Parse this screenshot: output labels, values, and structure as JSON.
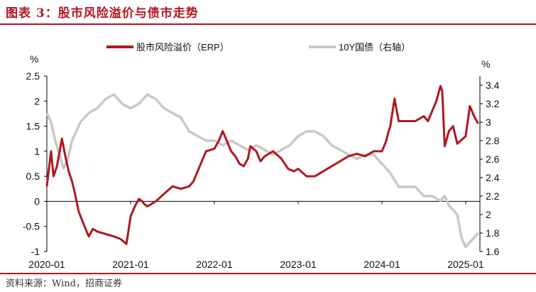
{
  "title": "图表 3：股市风险溢价与债市走势",
  "source": "资料来源：Wind，招商证券",
  "chart_data": {
    "type": "line",
    "left_unit": "%",
    "right_unit": "%",
    "x_ticks": [
      "2020-01",
      "2021-01",
      "2022-01",
      "2023-01",
      "2024-01",
      "2025-01"
    ],
    "x_range": [
      2020.0,
      2025.17
    ],
    "y_left": {
      "range": [
        -1,
        2.5
      ],
      "ticks": [
        "2.5",
        "2",
        "1.5",
        "1",
        "0.5",
        "0",
        "-0.5",
        "-1"
      ]
    },
    "y_right": {
      "range": [
        1.6,
        3.5
      ],
      "ticks": [
        "3.4",
        "3.2",
        "3",
        "2.8",
        "2.6",
        "2.4",
        "2.2",
        "2",
        "1.8",
        "1.6"
      ]
    },
    "series": [
      {
        "name": "股市风险溢价（ERP）",
        "axis": "left",
        "color": "#b0171f",
        "x": [
          2020.0,
          2020.05,
          2020.08,
          2020.12,
          2020.18,
          2020.22,
          2020.26,
          2020.3,
          2020.33,
          2020.38,
          2020.45,
          2020.5,
          2020.55,
          2020.6,
          2020.7,
          2020.8,
          2020.88,
          2020.95,
          2021.0,
          2021.05,
          2021.1,
          2021.14,
          2021.16,
          2021.2,
          2021.3,
          2021.4,
          2021.5,
          2021.6,
          2021.7,
          2021.75,
          2021.8,
          2021.9,
          2022.0,
          2022.05,
          2022.1,
          2022.2,
          2022.25,
          2022.3,
          2022.35,
          2022.4,
          2022.43,
          2022.5,
          2022.55,
          2022.6,
          2022.7,
          2022.8,
          2022.88,
          2022.95,
          2023.0,
          2023.1,
          2023.2,
          2023.3,
          2023.4,
          2023.5,
          2023.6,
          2023.7,
          2023.8,
          2023.9,
          2024.0,
          2024.05,
          2024.08,
          2024.1,
          2024.15,
          2024.2,
          2024.3,
          2024.4,
          2024.5,
          2024.55,
          2024.6,
          2024.65,
          2024.7,
          2024.72,
          2024.75,
          2024.8,
          2024.85,
          2024.9,
          2025.0,
          2025.05,
          2025.1,
          2025.15
        ],
        "values": [
          0.3,
          1.0,
          0.5,
          0.7,
          1.25,
          0.9,
          0.6,
          0.4,
          0.2,
          -0.2,
          -0.5,
          -0.7,
          -0.55,
          -0.6,
          -0.65,
          -0.7,
          -0.75,
          -0.85,
          -0.3,
          -0.1,
          0.05,
          0.0,
          -0.05,
          -0.1,
          0.0,
          0.15,
          0.3,
          0.25,
          0.3,
          0.4,
          0.6,
          1.0,
          1.05,
          1.2,
          1.4,
          1.0,
          0.9,
          0.75,
          0.7,
          0.85,
          1.1,
          1.0,
          0.8,
          0.9,
          1.0,
          0.85,
          0.65,
          0.6,
          0.65,
          0.5,
          0.5,
          0.6,
          0.7,
          0.8,
          0.9,
          0.95,
          0.9,
          1.0,
          1.0,
          1.2,
          1.4,
          1.5,
          2.05,
          1.6,
          1.6,
          1.6,
          1.7,
          1.6,
          1.8,
          2.0,
          2.3,
          2.2,
          1.1,
          1.4,
          1.5,
          1.15,
          1.3,
          1.9,
          1.7,
          1.55
        ]
      },
      {
        "name": "10Y国债（右轴）",
        "axis": "right",
        "color": "#c8c8c8",
        "x": [
          2020.0,
          2020.05,
          2020.1,
          2020.15,
          2020.2,
          2020.25,
          2020.3,
          2020.35,
          2020.4,
          2020.5,
          2020.6,
          2020.7,
          2020.8,
          2020.9,
          2021.0,
          2021.1,
          2021.2,
          2021.3,
          2021.4,
          2021.5,
          2021.6,
          2021.7,
          2021.8,
          2021.9,
          2022.0,
          2022.1,
          2022.2,
          2022.3,
          2022.4,
          2022.5,
          2022.6,
          2022.7,
          2022.8,
          2022.9,
          2023.0,
          2023.1,
          2023.2,
          2023.3,
          2023.4,
          2023.5,
          2023.6,
          2023.7,
          2023.8,
          2023.9,
          2024.0,
          2024.1,
          2024.2,
          2024.3,
          2024.4,
          2024.5,
          2024.6,
          2024.7,
          2024.75,
          2024.8,
          2024.9,
          2024.95,
          2025.0,
          2025.05,
          2025.1,
          2025.15
        ],
        "values": [
          3.1,
          3.0,
          2.8,
          2.65,
          2.5,
          2.6,
          2.8,
          2.9,
          3.0,
          3.1,
          3.15,
          3.25,
          3.3,
          3.2,
          3.15,
          3.2,
          3.3,
          3.25,
          3.15,
          3.1,
          3.05,
          2.9,
          2.85,
          2.8,
          2.8,
          2.75,
          2.8,
          2.75,
          2.7,
          2.75,
          2.7,
          2.65,
          2.7,
          2.75,
          2.85,
          2.9,
          2.9,
          2.85,
          2.75,
          2.7,
          2.65,
          2.6,
          2.65,
          2.65,
          2.55,
          2.45,
          2.3,
          2.3,
          2.3,
          2.2,
          2.2,
          2.15,
          2.2,
          2.1,
          2.0,
          1.75,
          1.65,
          1.7,
          1.75,
          1.8
        ]
      }
    ]
  }
}
